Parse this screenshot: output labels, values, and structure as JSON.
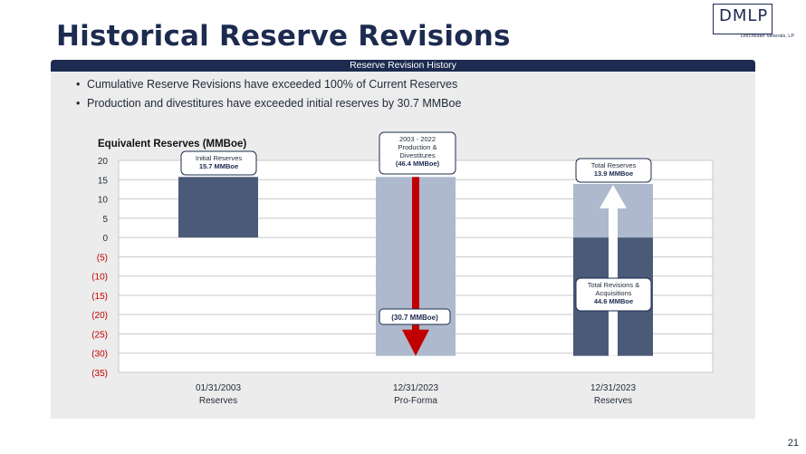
{
  "page": {
    "title": "Historical Reserve Revisions",
    "banner": "Reserve Revision History",
    "bullets": [
      "Cumulative Reserve Revisions have exceeded 100% of Current Reserves",
      "Production and divestitures have exceeded initial reserves by 30.7 MMBoe"
    ],
    "logo_text": "DMLP",
    "logo_sub": "Dorchester Minerals, LP",
    "page_number": "21"
  },
  "colors": {
    "navy": "#1c2b4f",
    "bar_dark": "#4a5a78",
    "bar_light": "#aeb9cd",
    "red": "#c00000",
    "grid": "#c9c9c9"
  },
  "chart_data": {
    "type": "bar",
    "title": "Equivalent Reserves (MMBoe)",
    "ylabel": "Equivalent Reserves (MMBoe)",
    "ylim": [
      -35,
      20
    ],
    "yticks": [
      20,
      15,
      10,
      5,
      0,
      -5,
      -10,
      -15,
      -20,
      -25,
      -30,
      -35
    ],
    "ytick_labels": [
      "20",
      "15",
      "10",
      "5",
      "0",
      "(5)",
      "(10)",
      "(15)",
      "(20)",
      "(25)",
      "(30)",
      "(35)"
    ],
    "categories": [
      {
        "line1": "01/31/2003",
        "line2": "Reserves"
      },
      {
        "line1": "12/31/2023",
        "line2": "Pro-Forma"
      },
      {
        "line1": "12/31/2023",
        "line2": "Reserves"
      }
    ],
    "series": [
      {
        "name": "Initial Reserves",
        "category": 0,
        "start": 0,
        "end": 15.7,
        "color": "dark"
      },
      {
        "name": "Production & Divestitures",
        "category": 1,
        "start": 15.7,
        "end": -30.7,
        "color": "light"
      },
      {
        "name": "Total Revisions & Acquisitions",
        "category": 2,
        "start": -30.7,
        "end": 0,
        "color": "dark"
      },
      {
        "name": "Total Reserves",
        "category": 2,
        "start": 0,
        "end": 13.9,
        "color": "light"
      }
    ],
    "annotations": {
      "initial": {
        "line1": "Initial Reserves",
        "value": "15.7 MMBoe"
      },
      "production": {
        "line1": "2003 - 2022",
        "line2": "Production &",
        "line3": "Divestitures",
        "value": "(46.4 MMBoe)"
      },
      "proforma": {
        "value": "(30.7 MMBoe)"
      },
      "total_reserves": {
        "line1": "Total Reserves",
        "value": "13.9 MMBoe"
      },
      "revisions": {
        "line1": "Total Revisions &",
        "line2": "Acquisitions",
        "value": "44.6 MMBoe"
      }
    }
  }
}
